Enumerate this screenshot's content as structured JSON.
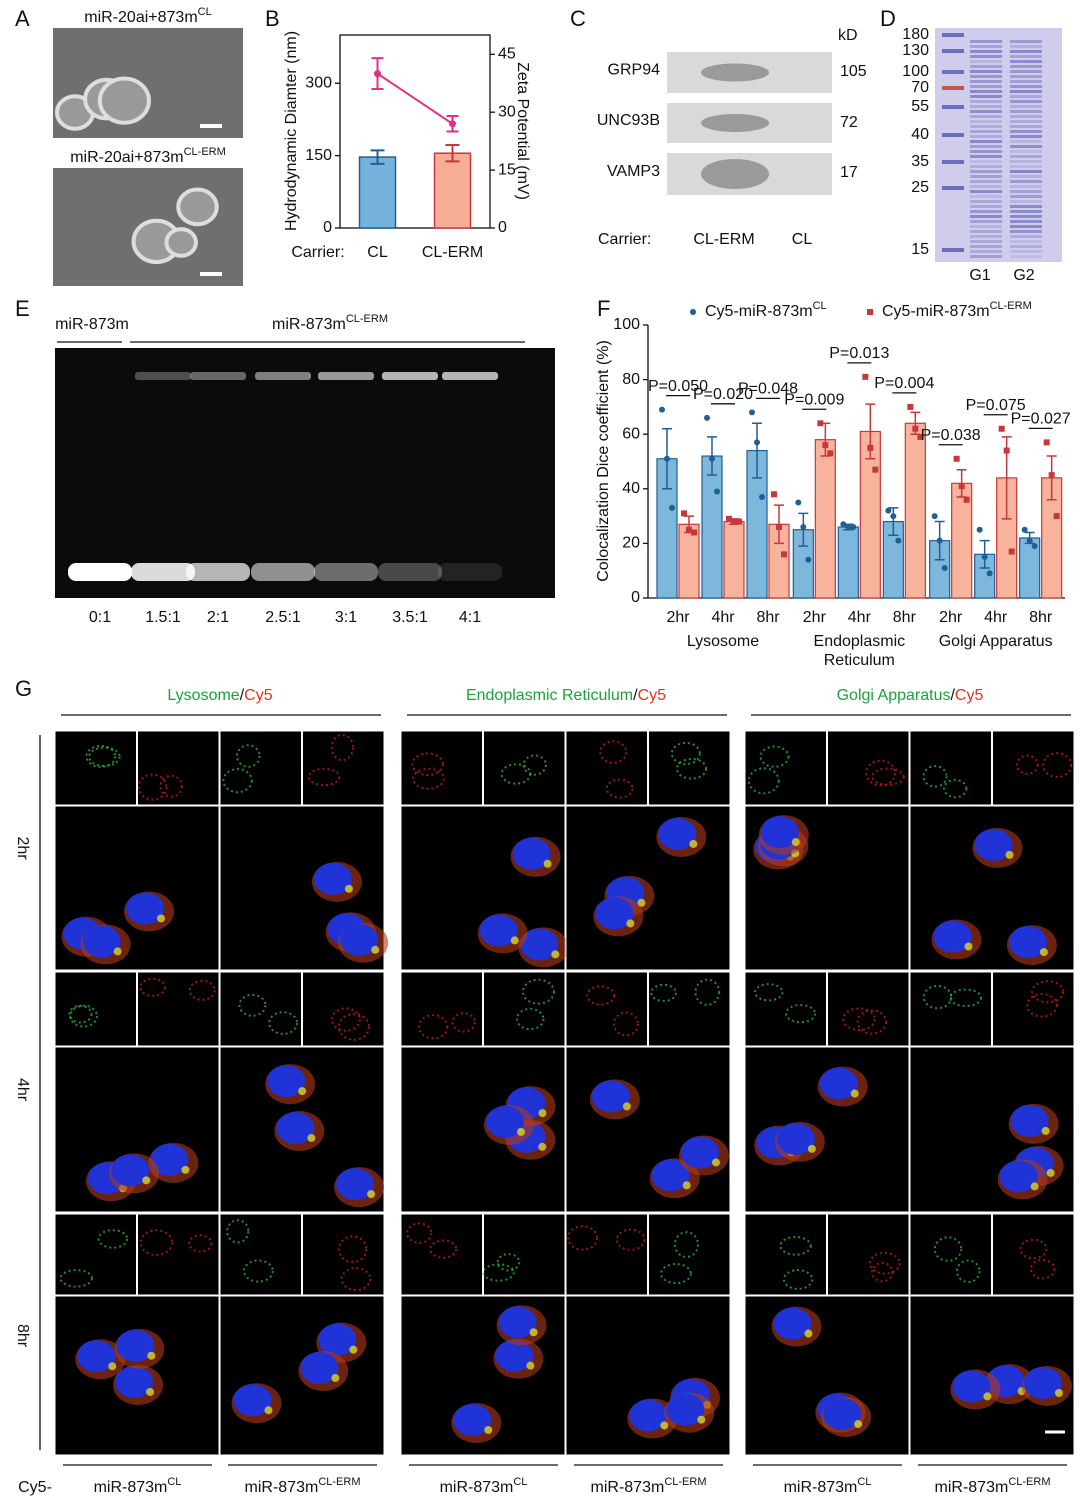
{
  "panel_labels": [
    "A",
    "B",
    "C",
    "D",
    "E",
    "F",
    "G"
  ],
  "panel_a": {
    "captions": [
      {
        "text": "miR-20ai+873m",
        "sup": "CL"
      },
      {
        "text": "miR-20ai+873m",
        "sup": "CL-ERM"
      }
    ]
  },
  "panel_c": {
    "unit": "kD",
    "rows": [
      {
        "protein": "GRP94",
        "kd": 105
      },
      {
        "protein": "UNC93B",
        "kd": 72
      },
      {
        "protein": "VAMP3",
        "kd": 17
      }
    ],
    "carrier_label": "Carrier:",
    "lanes": [
      "CL-ERM",
      "CL"
    ]
  },
  "panel_d": {
    "markers": [
      180,
      130,
      100,
      70,
      55,
      40,
      35,
      25,
      15
    ],
    "lanes": [
      "G1",
      "G2"
    ]
  },
  "panel_e": {
    "groups": [
      {
        "text": "miR-873m"
      },
      {
        "text": "miR-873m",
        "sup": "CL-ERM"
      }
    ],
    "ratios": [
      "0:1",
      "1.5:1",
      "2:1",
      "2.5:1",
      "3:1",
      "3.5:1",
      "4:1"
    ]
  },
  "panel_g": {
    "headers": [
      {
        "organelle": "Lysosome",
        "sep": "/",
        "probe": "Cy5"
      },
      {
        "organelle": "Endoplasmic Reticulum",
        "sep": "/",
        "probe": "Cy5"
      },
      {
        "organelle": "Golgi Apparatus",
        "sep": "/",
        "probe": "Cy5"
      }
    ],
    "times": [
      "2hr",
      "4hr",
      "8hr"
    ],
    "footer_prefix": "Cy5-",
    "conditions": [
      {
        "text": "miR-873m",
        "sup": "CL"
      },
      {
        "text": "miR-873m",
        "sup": "CL-ERM"
      },
      {
        "text": "miR-873m",
        "sup": "CL"
      },
      {
        "text": "miR-873m",
        "sup": "CL-ERM"
      },
      {
        "text": "miR-873m",
        "sup": "CL"
      },
      {
        "text": "miR-873m",
        "sup": "CL-ERM"
      }
    ]
  },
  "chart_data": [
    {
      "type": "bar_line",
      "category_label": "Carrier:",
      "categories": [
        "CL",
        "CL-ERM"
      ],
      "ylabel": "Hydrodynamic Diamter (nm)",
      "y2label": "Zeta Potential (mV)",
      "ylim": [
        0,
        400
      ],
      "yticks": [
        0,
        150,
        300
      ],
      "y2lim": [
        0,
        50
      ],
      "y2ticks": [
        0,
        15,
        30,
        45
      ],
      "series": [
        {
          "type": "bar",
          "colors": [
            "#76b3dc",
            "#f6ad95"
          ],
          "edge_colors": [
            "#1f5f96",
            "#c8383a"
          ],
          "values": [
            147,
            155
          ],
          "errors": [
            14,
            17
          ]
        },
        {
          "type": "line",
          "axis": "y2",
          "color": "#e0308a",
          "values": [
            40,
            27
          ],
          "errors": [
            4,
            2
          ]
        }
      ]
    },
    {
      "type": "bar",
      "ylabel": "Colocalization Dice coefficient (%)",
      "categories": [
        "2hr",
        "4hr",
        "8hr",
        "2hr",
        "4hr",
        "8hr",
        "2hr",
        "4hr",
        "8hr"
      ],
      "groups": [
        [
          "Lysosome"
        ],
        [
          "Endoplasmic",
          "Reticulum"
        ],
        [
          "Golgi Apparatus"
        ]
      ],
      "ylim": [
        0,
        100
      ],
      "yticks": [
        0,
        20,
        40,
        60,
        80,
        100
      ],
      "series": [
        {
          "name": "Cy5-miR-873m",
          "sup": "CL",
          "color": "#7db7dc",
          "edge_color": "#1f5f96",
          "values": [
            51,
            52,
            54,
            25,
            26,
            28,
            21,
            16,
            22
          ],
          "errors": [
            11,
            7,
            10,
            6,
            1,
            5,
            7,
            5,
            2
          ],
          "points": [
            [
              69,
              51,
              33
            ],
            [
              66,
              51,
              39
            ],
            [
              68,
              57,
              37
            ],
            [
              35,
              26,
              14
            ],
            [
              27,
              26,
              26
            ],
            [
              32,
              30,
              21
            ],
            [
              30,
              21,
              11
            ],
            [
              25,
              15,
              9
            ],
            [
              25,
              21,
              19
            ]
          ]
        },
        {
          "name": "Cy5-miR-873m",
          "sup": "CL-ERM",
          "color": "#f7b39b",
          "edge_color": "#c8383a",
          "values": [
            27,
            28,
            27,
            58,
            61,
            64,
            42,
            44,
            44
          ],
          "errors": [
            3,
            1,
            7,
            6,
            10,
            4,
            5,
            15,
            8
          ],
          "points": [
            [
              31,
              25,
              24
            ],
            [
              29,
              28,
              28
            ],
            [
              38,
              26,
              16
            ],
            [
              64,
              56,
              53
            ],
            [
              81,
              55,
              47
            ],
            [
              70,
              62,
              59
            ],
            [
              51,
              41,
              36
            ],
            [
              62,
              54,
              17
            ],
            [
              57,
              45,
              30
            ]
          ]
        }
      ],
      "annotations": [
        "P=0.050",
        "P=0.020",
        "P=0.048",
        "P=0.009",
        "P=0.013",
        "P=0.004",
        "P=0.038",
        "P=0.075",
        "P=0.027"
      ]
    }
  ]
}
